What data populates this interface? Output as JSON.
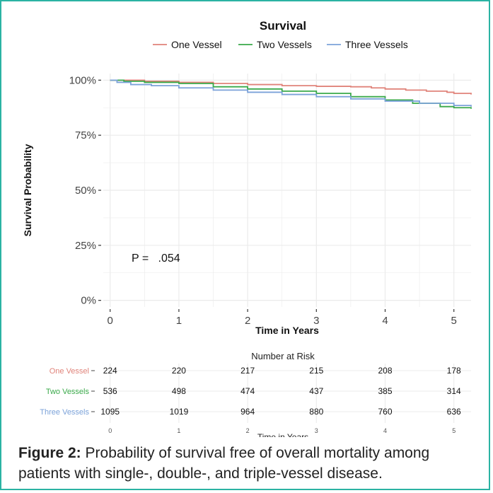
{
  "colors": {
    "frame": "#2bb3a3",
    "one_vessel": "#e0837a",
    "two_vessels": "#3aa94a",
    "three_vessels": "#7ba2d9",
    "grid": "#ebebeb"
  },
  "chart_data": [
    {
      "type": "line",
      "title": "Survival",
      "xlabel": "Time in Years",
      "ylabel": "Survival Probability",
      "xlim": [
        -0.1,
        5.25
      ],
      "ylim": [
        -0.03,
        1.03
      ],
      "x_ticks": [
        0,
        1,
        2,
        3,
        4,
        5
      ],
      "x_tick_labels": [
        "0",
        "1",
        "2",
        "3",
        "4",
        "5"
      ],
      "y_ticks": [
        0,
        0.25,
        0.5,
        0.75,
        1.0
      ],
      "y_tick_labels": [
        "0%",
        "25%",
        "50%",
        "75%",
        "100%"
      ],
      "grid": true,
      "legend_position": "top",
      "annotation": "P =   .054",
      "series": [
        {
          "name": "One Vessel",
          "color_key": "one_vessel",
          "x": [
            0,
            0.5,
            1.0,
            1.5,
            2.0,
            2.5,
            3.0,
            3.5,
            3.8,
            4.0,
            4.3,
            4.6,
            4.9,
            5.0,
            5.25
          ],
          "y": [
            1.0,
            0.995,
            0.99,
            0.985,
            0.98,
            0.975,
            0.972,
            0.97,
            0.965,
            0.96,
            0.955,
            0.95,
            0.945,
            0.94,
            0.935
          ]
        },
        {
          "name": "Two Vessels",
          "color_key": "two_vessels",
          "x": [
            0,
            0.2,
            0.5,
            1.0,
            1.5,
            2.0,
            2.5,
            3.0,
            3.5,
            4.0,
            4.4,
            4.8,
            5.0,
            5.25
          ],
          "y": [
            1.0,
            0.995,
            0.99,
            0.985,
            0.97,
            0.96,
            0.95,
            0.94,
            0.925,
            0.91,
            0.895,
            0.88,
            0.875,
            0.87
          ]
        },
        {
          "name": "Three Vessels",
          "color_key": "three_vessels",
          "x": [
            0,
            0.1,
            0.3,
            0.6,
            1.0,
            1.5,
            2.0,
            2.5,
            3.0,
            3.5,
            4.0,
            4.5,
            5.0,
            5.25
          ],
          "y": [
            1.0,
            0.99,
            0.98,
            0.975,
            0.965,
            0.955,
            0.945,
            0.935,
            0.925,
            0.915,
            0.905,
            0.895,
            0.885,
            0.88
          ]
        }
      ]
    },
    {
      "type": "table",
      "title": "Number at Risk",
      "xlabel": "Time in Years",
      "x_ticks": [
        0,
        1,
        2,
        3,
        4,
        5
      ],
      "rows": [
        {
          "name": "One Vessel",
          "color_key": "one_vessel",
          "values": [
            224,
            220,
            217,
            215,
            208,
            178
          ]
        },
        {
          "name": "Two Vessels",
          "color_key": "two_vessels",
          "values": [
            536,
            498,
            474,
            437,
            385,
            314
          ]
        },
        {
          "name": "Three Vessels",
          "color_key": "three_vessels",
          "values": [
            1095,
            1019,
            964,
            880,
            760,
            636
          ]
        }
      ]
    }
  ],
  "caption": {
    "label": "Figure 2:",
    "text": " Probability of survival free of overall mortality among patients with single-, double-, and triple-vessel disease."
  }
}
